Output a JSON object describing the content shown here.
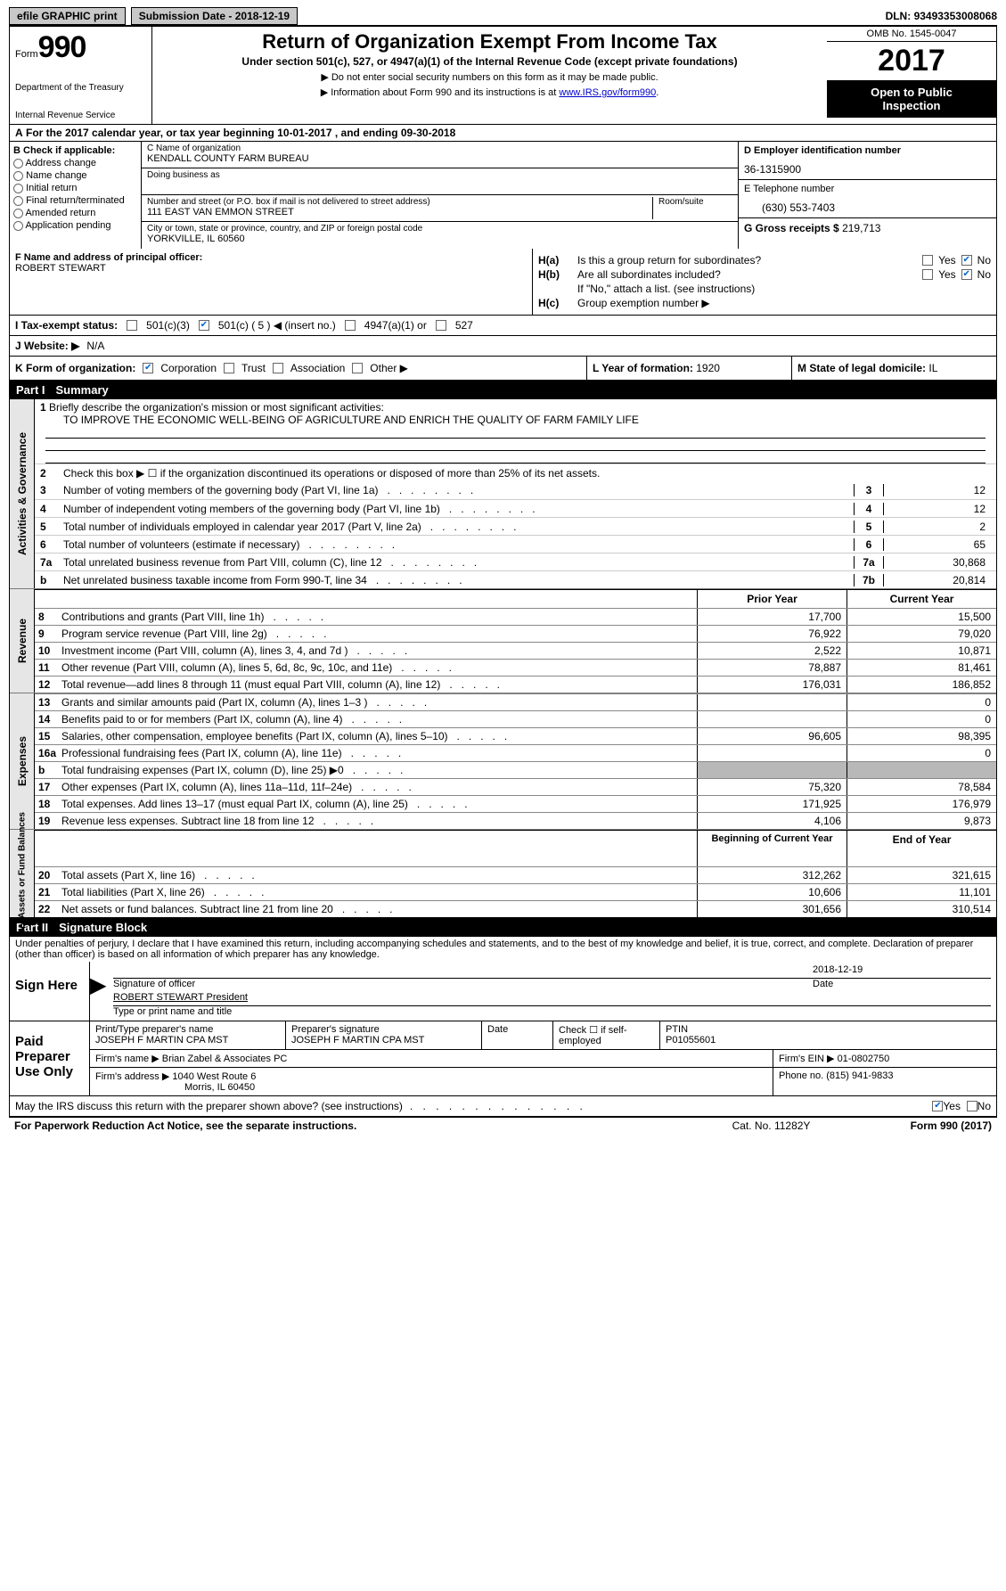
{
  "topbar": {
    "efile": "efile GRAPHIC print",
    "sub_label": "Submission Date - ",
    "sub_date": "2018-12-19",
    "dln_label": "DLN: ",
    "dln": "93493353008068"
  },
  "header": {
    "form_word": "Form",
    "form_no": "990",
    "dept1": "Department of the Treasury",
    "dept2": "Internal Revenue Service",
    "title": "Return of Organization Exempt From Income Tax",
    "subtitle": "Under section 501(c), 527, or 4947(a)(1) of the Internal Revenue Code (except private foundations)",
    "instr1": "▶ Do not enter social security numbers on this form as it may be made public.",
    "instr2_pre": "▶ Information about Form 990 and its instructions is at ",
    "instr2_link": "www.IRS.gov/form990",
    "omb": "OMB No. 1545-0047",
    "year": "2017",
    "open1": "Open to Public",
    "open2": "Inspection"
  },
  "row_a": {
    "label": "A",
    "text_pre": "For the 2017 calendar year, or tax year beginning ",
    "begin": "10-01-2017",
    "mid": " , and ending ",
    "end": "09-30-2018"
  },
  "col_b": {
    "hdr": "B Check if applicable:",
    "items": [
      "Address change",
      "Name change",
      "Initial return",
      "Final return/terminated",
      "Amended return",
      "Application pending"
    ]
  },
  "col_c": {
    "name_lbl": "C Name of organization",
    "name": "KENDALL COUNTY FARM BUREAU",
    "dba_lbl": "Doing business as",
    "dba": "",
    "addr_lbl": "Number and street (or P.O. box if mail is not delivered to street address)",
    "room_lbl": "Room/suite",
    "addr": "111 EAST VAN EMMON STREET",
    "city_lbl": "City or town, state or province, country, and ZIP or foreign postal code",
    "city": "YORKVILLE, IL  60560"
  },
  "col_d": {
    "ein_lbl": "D Employer identification number",
    "ein": "36-1315900",
    "tel_lbl": "E Telephone number",
    "tel": "(630) 553-7403",
    "gross_lbl": "G Gross receipts $ ",
    "gross": "219,713"
  },
  "row_f": {
    "lbl": "F  Name and address of principal officer:",
    "name": "ROBERT STEWART"
  },
  "h": {
    "ha_lbl": "H(a)",
    "ha_txt": "Is this a group return for subordinates?",
    "hb_lbl": "H(b)",
    "hb_txt": "Are all subordinates included?",
    "hb_note": "If \"No,\" attach a list. (see instructions)",
    "hc_lbl": "H(c)",
    "hc_txt": "Group exemption number ▶",
    "yes": "Yes",
    "no": "No"
  },
  "row_i": {
    "lbl": "I  Tax-exempt status:",
    "opts": [
      "501(c)(3)",
      "501(c) ( 5 ) ◀ (insert no.)",
      "4947(a)(1) or",
      "527"
    ]
  },
  "row_j": {
    "lbl": "J  Website: ▶",
    "val": "N/A"
  },
  "row_k": {
    "lbl": "K Form of organization:",
    "opts": [
      "Corporation",
      "Trust",
      "Association",
      "Other ▶"
    ],
    "l_lbl": "L Year of formation: ",
    "l_val": "1920",
    "m_lbl": "M State of legal domicile: ",
    "m_val": "IL"
  },
  "part1": {
    "num": "Part I",
    "title": "Summary"
  },
  "activities": {
    "side": "Activities & Governance",
    "l1_lbl": "1",
    "l1_txt": "Briefly describe the organization's mission or most significant activities:",
    "l1_val": "TO IMPROVE THE ECONOMIC WELL-BEING OF AGRICULTURE AND ENRICH THE QUALITY OF FARM FAMILY LIFE",
    "l2_lbl": "2",
    "l2_txt": "Check this box ▶ ☐  if the organization discontinued its operations or disposed of more than 25% of its net assets.",
    "lines": [
      {
        "n": "3",
        "t": "Number of voting members of the governing body (Part VI, line 1a)",
        "c": "3",
        "v": "12"
      },
      {
        "n": "4",
        "t": "Number of independent voting members of the governing body (Part VI, line 1b)",
        "c": "4",
        "v": "12"
      },
      {
        "n": "5",
        "t": "Total number of individuals employed in calendar year 2017 (Part V, line 2a)",
        "c": "5",
        "v": "2"
      },
      {
        "n": "6",
        "t": "Total number of volunteers (estimate if necessary)",
        "c": "6",
        "v": "65"
      },
      {
        "n": "7a",
        "t": "Total unrelated business revenue from Part VIII, column (C), line 12",
        "c": "7a",
        "v": "30,868"
      },
      {
        "n": "b",
        "t": "Net unrelated business taxable income from Form 990-T, line 34",
        "c": "7b",
        "v": "20,814"
      }
    ]
  },
  "cols": {
    "prior": "Prior Year",
    "current": "Current Year",
    "begin": "Beginning of Current Year",
    "end": "End of Year"
  },
  "revenue": {
    "side": "Revenue",
    "lines": [
      {
        "n": "8",
        "t": "Contributions and grants (Part VIII, line 1h)",
        "p": "17,700",
        "c": "15,500"
      },
      {
        "n": "9",
        "t": "Program service revenue (Part VIII, line 2g)",
        "p": "76,922",
        "c": "79,020"
      },
      {
        "n": "10",
        "t": "Investment income (Part VIII, column (A), lines 3, 4, and 7d )",
        "p": "2,522",
        "c": "10,871"
      },
      {
        "n": "11",
        "t": "Other revenue (Part VIII, column (A), lines 5, 6d, 8c, 9c, 10c, and 11e)",
        "p": "78,887",
        "c": "81,461"
      },
      {
        "n": "12",
        "t": "Total revenue—add lines 8 through 11 (must equal Part VIII, column (A), line 12)",
        "p": "176,031",
        "c": "186,852"
      }
    ]
  },
  "expenses": {
    "side": "Expenses",
    "lines": [
      {
        "n": "13",
        "t": "Grants and similar amounts paid (Part IX, column (A), lines 1–3 )",
        "p": "",
        "c": "0"
      },
      {
        "n": "14",
        "t": "Benefits paid to or for members (Part IX, column (A), line 4)",
        "p": "",
        "c": "0"
      },
      {
        "n": "15",
        "t": "Salaries, other compensation, employee benefits (Part IX, column (A), lines 5–10)",
        "p": "96,605",
        "c": "98,395"
      },
      {
        "n": "16a",
        "t": "Professional fundraising fees (Part IX, column (A), line 11e)",
        "p": "",
        "c": "0"
      },
      {
        "n": "b",
        "t": "Total fundraising expenses (Part IX, column (D), line 25) ▶0",
        "p": "GREY",
        "c": "GREY"
      },
      {
        "n": "17",
        "t": "Other expenses (Part IX, column (A), lines 11a–11d, 11f–24e)",
        "p": "75,320",
        "c": "78,584"
      },
      {
        "n": "18",
        "t": "Total expenses. Add lines 13–17 (must equal Part IX, column (A), line 25)",
        "p": "171,925",
        "c": "176,979"
      },
      {
        "n": "19",
        "t": "Revenue less expenses. Subtract line 18 from line 12",
        "p": "4,106",
        "c": "9,873"
      }
    ]
  },
  "netassets": {
    "side": "Net Assets or Fund Balances",
    "lines": [
      {
        "n": "20",
        "t": "Total assets (Part X, line 16)",
        "p": "312,262",
        "c": "321,615"
      },
      {
        "n": "21",
        "t": "Total liabilities (Part X, line 26)",
        "p": "10,606",
        "c": "11,101"
      },
      {
        "n": "22",
        "t": "Net assets or fund balances. Subtract line 21 from line 20",
        "p": "301,656",
        "c": "310,514"
      }
    ]
  },
  "part2": {
    "num": "Part II",
    "title": "Signature Block"
  },
  "perjury": "Under penalties of perjury, I declare that I have examined this return, including accompanying schedules and statements, and to the best of my knowledge and belief, it is true, correct, and complete. Declaration of preparer (other than officer) is based on all information of which preparer has any knowledge.",
  "sign": {
    "label": "Sign Here",
    "sig_lbl": "Signature of officer",
    "date_lbl": "Date",
    "date": "2018-12-19",
    "name": "ROBERT STEWART President",
    "name_lbl": "Type or print name and title"
  },
  "paid": {
    "label1": "Paid",
    "label2": "Preparer",
    "label3": "Use Only",
    "r1": {
      "c1_lbl": "Print/Type preparer's name",
      "c1": "JOSEPH F MARTIN CPA MST",
      "c2_lbl": "Preparer's signature",
      "c2": "JOSEPH F MARTIN CPA MST",
      "c3_lbl": "Date",
      "c3": "",
      "c4_lbl": "Check ☐ if self-employed",
      "c5_lbl": "PTIN",
      "c5": "P01055601"
    },
    "r2": {
      "lbl": "Firm's name    ▶ ",
      "val": "Brian Zabel & Associates PC",
      "ein_lbl": "Firm's EIN ▶ ",
      "ein": "01-0802750"
    },
    "r3": {
      "lbl": "Firm's address ▶ ",
      "val1": "1040 West Route 6",
      "val2": "Morris, IL  60450",
      "ph_lbl": "Phone no. ",
      "ph": "(815) 941-9833"
    }
  },
  "discuss": {
    "txt": "May the IRS discuss this return with the preparer shown above? (see instructions)",
    "yes": "Yes",
    "no": "No"
  },
  "footer": {
    "left": "For Paperwork Reduction Act Notice, see the separate instructions.",
    "mid": "Cat. No. 11282Y",
    "right": "Form 990 (2017)"
  }
}
